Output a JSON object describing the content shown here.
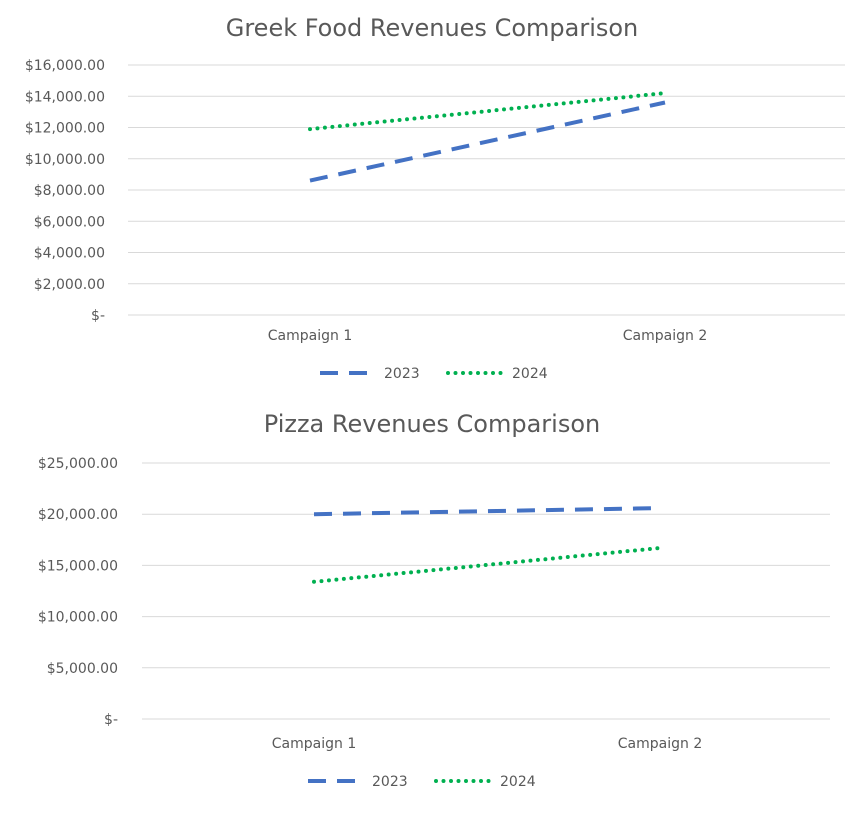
{
  "chart_data": [
    {
      "type": "line",
      "title": "Greek Food Revenues Comparison",
      "categories": [
        "Campaign 1",
        "Campaign 2"
      ],
      "series": [
        {
          "name": "2023",
          "values": [
            8600,
            13600
          ],
          "color": "#4472C4",
          "line_style": "dashed"
        },
        {
          "name": "2024",
          "values": [
            11900,
            14200
          ],
          "color": "#00B050",
          "line_style": "dotted"
        }
      ],
      "xlabel": "",
      "ylabel": "",
      "ylim": [
        0,
        16000
      ],
      "yticks": [
        0,
        2000,
        4000,
        6000,
        8000,
        10000,
        12000,
        14000,
        16000
      ],
      "ytick_labels": [
        "$-",
        "$2,000.00",
        "$4,000.00",
        "$6,000.00",
        "$8,000.00",
        "$10,000.00",
        "$12,000.00",
        "$14,000.00",
        "$16,000.00"
      ],
      "grid": true,
      "legend": "bottom"
    },
    {
      "type": "line",
      "title": "Pizza Revenues Comparison",
      "categories": [
        "Campaign 1",
        "Campaign 2"
      ],
      "series": [
        {
          "name": "2023",
          "values": [
            20000,
            20600
          ],
          "color": "#4472C4",
          "line_style": "dashed"
        },
        {
          "name": "2024",
          "values": [
            13400,
            16700
          ],
          "color": "#00B050",
          "line_style": "dotted"
        }
      ],
      "xlabel": "",
      "ylabel": "",
      "ylim": [
        0,
        25000
      ],
      "yticks": [
        0,
        5000,
        10000,
        15000,
        20000,
        25000
      ],
      "ytick_labels": [
        "$-",
        "$5,000.00",
        "$10,000.00",
        "$15,000.00",
        "$20,000.00",
        "$25,000.00"
      ],
      "grid": true,
      "legend": "bottom"
    }
  ]
}
